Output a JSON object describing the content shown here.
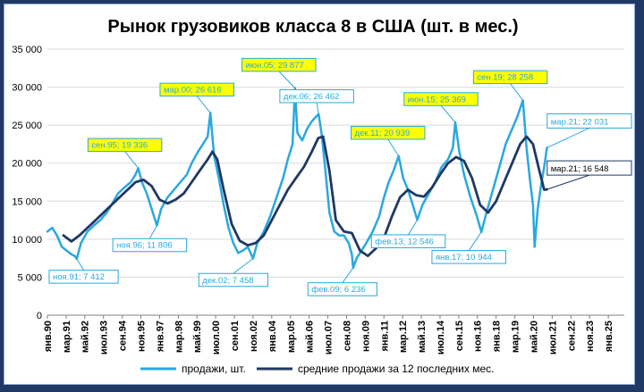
{
  "chart_data": {
    "type": "line",
    "title": "Рынок грузовиков класса 8 в США (шт. в мес.)",
    "ylim": [
      0,
      35000
    ],
    "yticks": [
      "0",
      "5 000",
      "10 000",
      "15 000",
      "20 000",
      "25 000",
      "30 000",
      "35 000"
    ],
    "xlim": [
      1990.0,
      2026.0
    ],
    "xticks": [
      {
        "label": "янв.90",
        "x": 1990.0
      },
      {
        "label": "мар.91",
        "x": 1991.17
      },
      {
        "label": "май.92",
        "x": 1992.33
      },
      {
        "label": "июл.93",
        "x": 1993.5
      },
      {
        "label": "сен.94",
        "x": 1994.67
      },
      {
        "label": "ноя.95",
        "x": 1995.83
      },
      {
        "label": "янв.97",
        "x": 1997.0
      },
      {
        "label": "мар.98",
        "x": 1998.17
      },
      {
        "label": "май.99",
        "x": 1999.33
      },
      {
        "label": "июл.00",
        "x": 2000.5
      },
      {
        "label": "сен.01",
        "x": 2001.67
      },
      {
        "label": "ноя.02",
        "x": 2002.83
      },
      {
        "label": "янв.04",
        "x": 2004.0
      },
      {
        "label": "мар.05",
        "x": 2005.17
      },
      {
        "label": "май.06",
        "x": 2006.33
      },
      {
        "label": "июл.07",
        "x": 2007.5
      },
      {
        "label": "сен.08",
        "x": 2008.67
      },
      {
        "label": "ноя.09",
        "x": 2009.83
      },
      {
        "label": "янв.11",
        "x": 2011.0
      },
      {
        "label": "мар.12",
        "x": 2012.17
      },
      {
        "label": "май.13",
        "x": 2013.33
      },
      {
        "label": "июл.14",
        "x": 2014.5
      },
      {
        "label": "сен.15",
        "x": 2015.67
      },
      {
        "label": "ноя.16",
        "x": 2016.83
      },
      {
        "label": "янв.18",
        "x": 2018.0
      },
      {
        "label": "мар.19",
        "x": 2019.17
      },
      {
        "label": "май.20",
        "x": 2020.33
      },
      {
        "label": "июл.21",
        "x": 2021.5
      },
      {
        "label": "сен.22",
        "x": 2022.67
      },
      {
        "label": "ноя.23",
        "x": 2023.83
      },
      {
        "label": "янв.25",
        "x": 2025.0
      }
    ],
    "series": [
      {
        "name": "продажи, шт.",
        "color": "#29a8e0",
        "x": [
          1990.0,
          1990.3,
          1990.6,
          1990.9,
          1991.2,
          1991.5,
          1991.7,
          1991.83,
          1992.1,
          1992.5,
          1992.9,
          1993.3,
          1993.7,
          1994.0,
          1994.4,
          1994.8,
          1995.2,
          1995.5,
          1995.67,
          1995.9,
          1996.2,
          1996.5,
          1996.83,
          1997.1,
          1997.5,
          1997.9,
          1998.3,
          1998.7,
          1999.0,
          1999.4,
          1999.7,
          2000.0,
          2000.17,
          2000.4,
          2000.7,
          2001.0,
          2001.3,
          2001.6,
          2001.9,
          2002.2,
          2002.5,
          2002.83,
          2003.1,
          2003.5,
          2003.9,
          2004.3,
          2004.7,
          2005.0,
          2005.3,
          2005.45,
          2005.6,
          2005.9,
          2006.2,
          2006.5,
          2006.92,
          2007.1,
          2007.3,
          2007.6,
          2007.9,
          2008.2,
          2008.5,
          2008.8,
          2009.0,
          2009.08,
          2009.3,
          2009.6,
          2009.9,
          2010.3,
          2010.7,
          2011.0,
          2011.3,
          2011.6,
          2011.92,
          2012.2,
          2012.5,
          2012.8,
          2013.08,
          2013.4,
          2013.8,
          2014.2,
          2014.6,
          2015.0,
          2015.3,
          2015.45,
          2015.7,
          2016.0,
          2016.4,
          2016.8,
          2017.08,
          2017.4,
          2017.8,
          2018.2,
          2018.6,
          2019.0,
          2019.3,
          2019.67,
          2019.9,
          2020.1,
          2020.3,
          2020.4,
          2020.6,
          2020.8,
          2021.0,
          2021.17
        ],
        "y": [
          11000,
          11500,
          10500,
          9000,
          8500,
          8000,
          7800,
          7412,
          9500,
          11000,
          11800,
          12500,
          13500,
          14500,
          16000,
          16800,
          17500,
          18500,
          19336,
          17500,
          16000,
          14000,
          11806,
          14000,
          15500,
          16500,
          17500,
          18500,
          20000,
          21500,
          22500,
          23500,
          26616,
          21000,
          18000,
          14500,
          11500,
          9500,
          8200,
          8500,
          9000,
          7458,
          9500,
          11000,
          13000,
          15500,
          18000,
          20500,
          22500,
          29877,
          24000,
          23000,
          24500,
          25500,
          26462,
          24000,
          20000,
          13500,
          11000,
          10500,
          10500,
          9500,
          8000,
          6236,
          7500,
          8500,
          9500,
          11000,
          13000,
          15500,
          17500,
          19000,
          20939,
          18000,
          16500,
          14500,
          12546,
          14500,
          16000,
          17500,
          19500,
          20500,
          22000,
          25369,
          21500,
          18500,
          15500,
          13000,
          10944,
          13500,
          16500,
          19500,
          22500,
          24500,
          26000,
          28258,
          22000,
          18000,
          14500,
          9000,
          14000,
          17000,
          19500,
          22031
        ]
      },
      {
        "name": "средние продажи за 12 последних мес.",
        "color": "#1f3864",
        "x": [
          1991.0,
          1991.5,
          1992.0,
          1992.5,
          1993.0,
          1993.5,
          1994.0,
          1994.5,
          1995.0,
          1995.5,
          1996.0,
          1996.5,
          1997.0,
          1997.5,
          1998.0,
          1998.5,
          1999.0,
          1999.5,
          2000.0,
          2000.3,
          2000.6,
          2001.0,
          2001.5,
          2002.0,
          2002.5,
          2003.0,
          2003.5,
          2004.0,
          2004.5,
          2005.0,
          2005.5,
          2006.0,
          2006.5,
          2006.9,
          2007.2,
          2007.6,
          2008.0,
          2008.5,
          2009.0,
          2009.5,
          2010.0,
          2010.5,
          2011.0,
          2011.5,
          2012.0,
          2012.5,
          2013.0,
          2013.5,
          2014.0,
          2014.5,
          2015.0,
          2015.5,
          2016.0,
          2016.5,
          2017.0,
          2017.5,
          2018.0,
          2018.5,
          2019.0,
          2019.5,
          2019.9,
          2020.3,
          2020.7,
          2021.0,
          2021.17
        ],
        "y": [
          10500,
          9700,
          10500,
          11500,
          12500,
          13500,
          14500,
          15500,
          16500,
          17500,
          17800,
          17000,
          15200,
          14700,
          15200,
          16000,
          17500,
          19000,
          20500,
          21500,
          20500,
          16500,
          12000,
          9800,
          9200,
          9500,
          10500,
          12500,
          14500,
          16500,
          18000,
          19500,
          21500,
          23300,
          23500,
          19000,
          12500,
          11000,
          10800,
          8500,
          7800,
          8800,
          10200,
          13000,
          15500,
          16500,
          15800,
          15600,
          16800,
          18500,
          20000,
          20800,
          20300,
          18000,
          14500,
          13500,
          15000,
          17500,
          20000,
          22500,
          23500,
          22500,
          19000,
          16500,
          16548
        ]
      }
    ],
    "annotations": [
      {
        "text": "ноя.91; 7 412",
        "x": 1991.83,
        "y": 7412,
        "style": "low"
      },
      {
        "text": "сен.95; 19 336",
        "x": 1995.67,
        "y": 19336,
        "style": "high"
      },
      {
        "text": "ноя.96; 11 806",
        "x": 1996.83,
        "y": 11806,
        "style": "low"
      },
      {
        "text": "мар.00; 26 616",
        "x": 2000.17,
        "y": 26616,
        "style": "high"
      },
      {
        "text": "дек.02; 7 458",
        "x": 2002.83,
        "y": 7458,
        "style": "low"
      },
      {
        "text": "июн.05; 29 877",
        "x": 2005.45,
        "y": 29877,
        "style": "high"
      },
      {
        "text": "дек.06; 26 462",
        "x": 2006.92,
        "y": 26462,
        "style": "low"
      },
      {
        "text": "фев.09; 6 236",
        "x": 2009.08,
        "y": 6236,
        "style": "low"
      },
      {
        "text": "дек.11; 20 939",
        "x": 2011.92,
        "y": 20939,
        "style": "high"
      },
      {
        "text": "фев.13; 12 546",
        "x": 2013.08,
        "y": 12546,
        "style": "low"
      },
      {
        "text": "июн.15; 25 369",
        "x": 2015.45,
        "y": 25369,
        "style": "high"
      },
      {
        "text": "янв.17; 10 944",
        "x": 2017.08,
        "y": 10944,
        "style": "low"
      },
      {
        "text": "сен.19; 28 258",
        "x": 2019.67,
        "y": 28258,
        "style": "high"
      },
      {
        "text": "мар.21; 22 031",
        "x": 2021.17,
        "y": 22031,
        "style": "last-sales"
      },
      {
        "text": "мар.21; 16 548",
        "x": 2021.17,
        "y": 16548,
        "style": "last-avg"
      }
    ],
    "legend_placement": "bottom",
    "grid": "horizontal"
  },
  "colors": {
    "high_fill": "#ffff00",
    "high_border": "#29a8e0",
    "annotation_text": "#29a8e0",
    "avg_text": "#1f3864"
  }
}
